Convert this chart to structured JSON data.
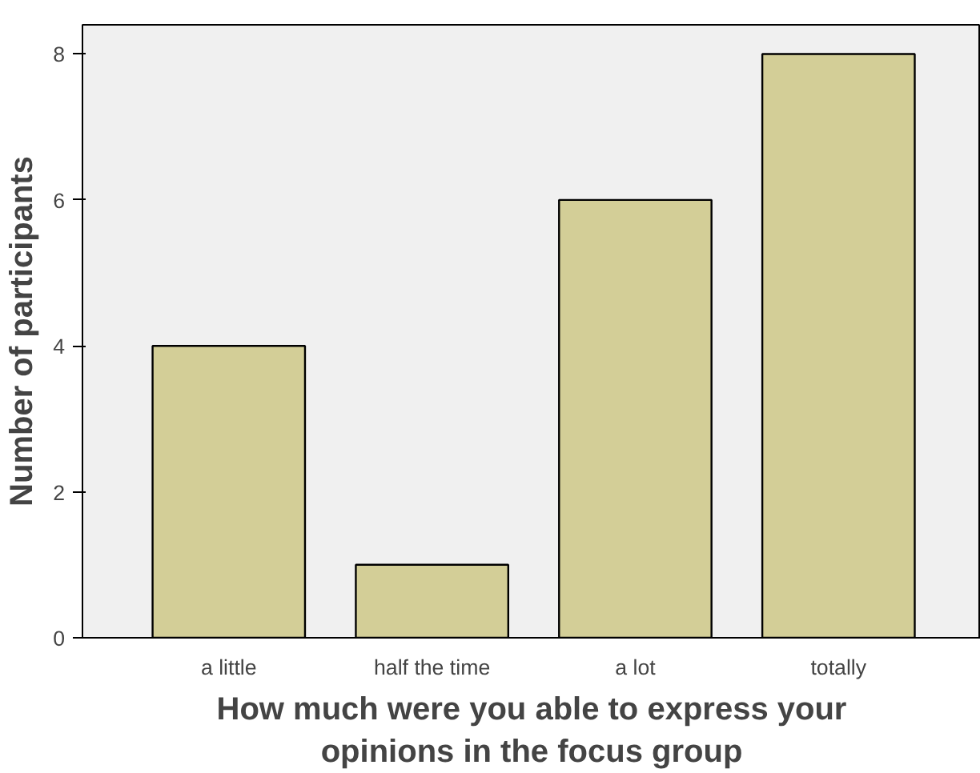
{
  "chart_data": {
    "type": "bar",
    "xlabel": "How much were you able to express your opinions in the focus group",
    "ylabel": "Number of participants",
    "categories": [
      "a little",
      "half the time",
      "a lot",
      "totally"
    ],
    "values": [
      4,
      1,
      6,
      8
    ],
    "color": "#d3ce97",
    "ylim": [
      0,
      8.4
    ],
    "yticks": [
      0,
      2,
      4,
      6,
      8
    ],
    "grid": false
  }
}
